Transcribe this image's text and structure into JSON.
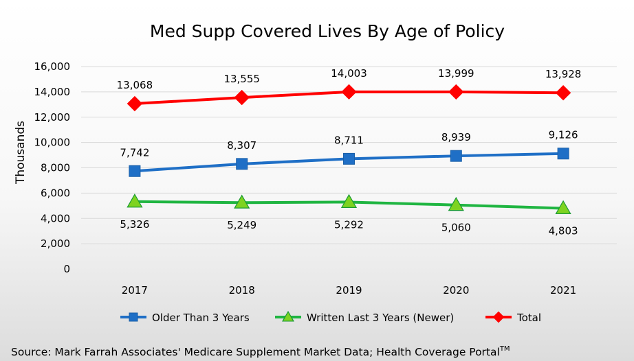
{
  "chart_data": {
    "type": "line",
    "title": "Med Supp Covered Lives By Age of Policy",
    "ylabel": "Thousands",
    "xlabel": "",
    "categories": [
      "2017",
      "2018",
      "2019",
      "2020",
      "2021"
    ],
    "ylim": [
      0,
      16000
    ],
    "yticks": [
      "0",
      "2,000",
      "4,000",
      "6,000",
      "8,000",
      "10,000",
      "12,000",
      "14,000",
      "16,000"
    ],
    "grid": true,
    "legend_position": "bottom",
    "series": [
      {
        "name": "Older Than 3 Years",
        "values": [
          7742,
          8307,
          8711,
          8939,
          9126
        ],
        "labels": [
          "7,742",
          "8,307",
          "8,711",
          "8,939",
          "9,126"
        ],
        "color": "#1f6fc6",
        "marker": "square",
        "label_position": "above"
      },
      {
        "name": "Written Last 3 Years (Newer)",
        "values": [
          5326,
          5249,
          5292,
          5060,
          4803
        ],
        "labels": [
          "5,326",
          "5,249",
          "5,292",
          "5,060",
          "4,803"
        ],
        "color": "#1fb541",
        "marker": "triangle",
        "label_position": "below"
      },
      {
        "name": "Total",
        "values": [
          13068,
          13555,
          14003,
          13999,
          13928
        ],
        "labels": [
          "13,068",
          "13,555",
          "14,003",
          "13,999",
          "13,928"
        ],
        "color": "#ff0000",
        "marker": "diamond",
        "label_position": "above"
      }
    ]
  },
  "source": {
    "text": "Source: Mark Farrah Associates' Medicare Supplement Market Data; Health Coverage Portal",
    "superscript": "TM"
  }
}
